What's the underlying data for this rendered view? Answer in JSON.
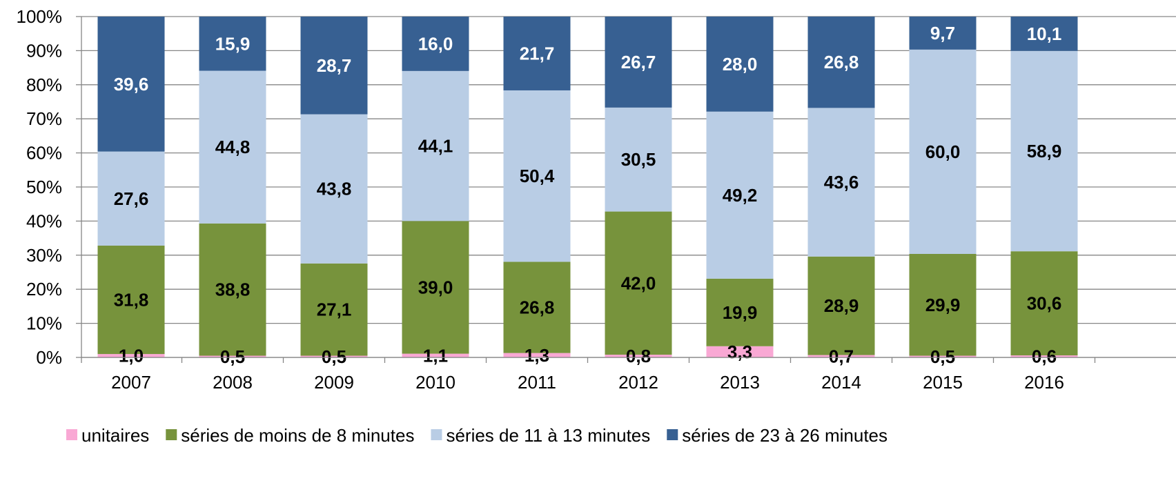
{
  "chart_data": {
    "type": "bar",
    "stacked": true,
    "percent_stacked": true,
    "categories": [
      "2007",
      "2008",
      "2009",
      "2010",
      "2011",
      "2012",
      "2013",
      "2014",
      "2015",
      "2016"
    ],
    "series": [
      {
        "name": "unitaires",
        "color": "#f9a8d4",
        "label_color": "#000000",
        "values": [
          "1,0",
          "0,5",
          "0,5",
          "1,1",
          "1,3",
          "0,8",
          "3,3",
          "0,7",
          "0,5",
          "0,6"
        ]
      },
      {
        "name": "séries de moins de 8 minutes",
        "color": "#77933c",
        "label_color": "#000000",
        "values": [
          "31,8",
          "38,8",
          "27,1",
          "39,0",
          "26,8",
          "42,0",
          "19,9",
          "28,9",
          "29,9",
          "30,6"
        ]
      },
      {
        "name": "séries de 11 à 13 minutes",
        "color": "#b9cde5",
        "label_color": "#000000",
        "values": [
          "27,6",
          "44,8",
          "43,8",
          "44,1",
          "50,4",
          "30,5",
          "49,2",
          "43,6",
          "60,0",
          "58,9"
        ]
      },
      {
        "name": "séries de 23 à 26 minutes",
        "color": "#376092",
        "label_color": "#ffffff",
        "values": [
          "39,6",
          "15,9",
          "28,7",
          "16,0",
          "21,7",
          "26,7",
          "28,0",
          "26,8",
          "9,7",
          "10,1"
        ]
      }
    ],
    "y_ticks": [
      "0%",
      "10%",
      "20%",
      "30%",
      "40%",
      "50%",
      "60%",
      "70%",
      "80%",
      "90%",
      "100%"
    ],
    "ylim": [
      0,
      100
    ],
    "grid": true,
    "legend_position": "bottom",
    "title": "",
    "xlabel": "",
    "ylabel": ""
  }
}
